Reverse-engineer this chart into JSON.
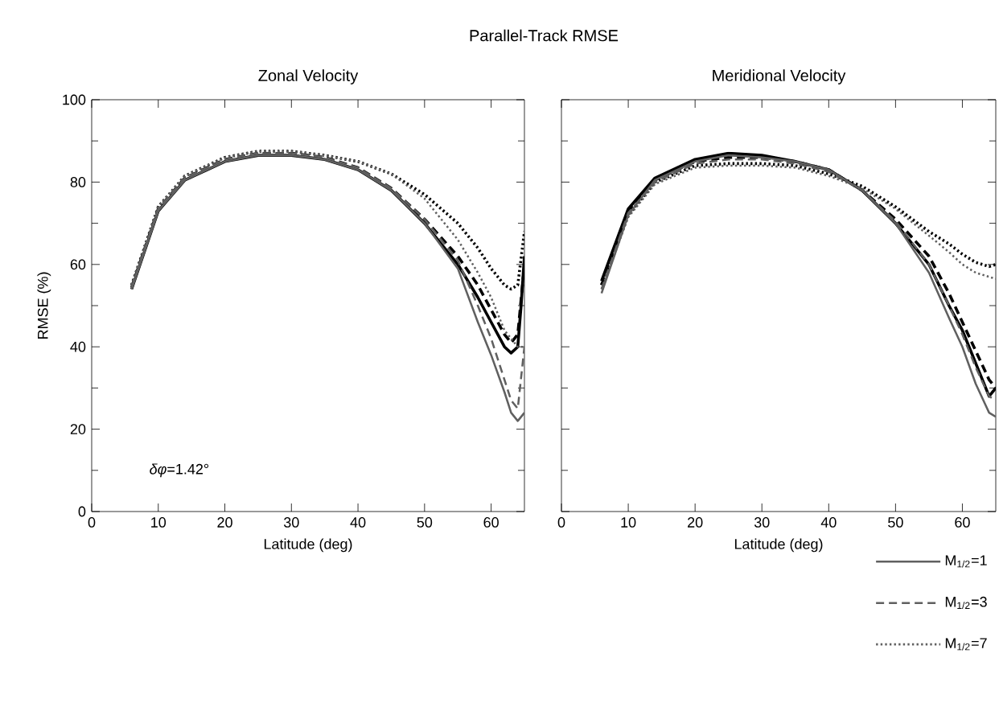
{
  "chart_data": [
    {
      "type": "line",
      "title": "Parallel-Track RMSE",
      "subtitle": "Zonal Velocity",
      "xlabel": "Latitude (deg)",
      "ylabel": "RMSE (%)",
      "xlim": [
        0,
        65
      ],
      "ylim": [
        0,
        100
      ],
      "xticks": [
        0,
        10,
        20,
        30,
        40,
        50,
        60
      ],
      "yticks": [
        0,
        20,
        40,
        60,
        80,
        100
      ],
      "grid": false,
      "legend": false,
      "annotations": [
        "*δφ*=1.42°"
      ],
      "series": [
        {
          "color": "#000000",
          "line_style": "solid",
          "x": [
            6,
            10,
            14,
            20,
            25,
            30,
            35,
            40,
            45,
            50,
            55,
            58,
            60,
            62,
            63,
            64,
            64.5,
            65
          ],
          "values": [
            54,
            73,
            80.5,
            85,
            86.5,
            86.5,
            85.5,
            83,
            78,
            70,
            60,
            52,
            46,
            40,
            38.5,
            40,
            50,
            62
          ]
        },
        {
          "color": "#000000",
          "line_style": "dashed",
          "x": [
            6,
            10,
            14,
            20,
            25,
            30,
            35,
            40,
            45,
            50,
            55,
            58,
            60,
            62,
            63,
            64,
            65
          ],
          "values": [
            54.5,
            73.5,
            81,
            85.5,
            87,
            87,
            86,
            83.5,
            78.5,
            71,
            62,
            55,
            49,
            43,
            41,
            43,
            60
          ]
        },
        {
          "color": "#000000",
          "line_style": "dotted",
          "x": [
            6,
            10,
            14,
            20,
            25,
            30,
            35,
            40,
            45,
            50,
            55,
            58,
            60,
            62,
            63,
            64,
            65
          ],
          "values": [
            55,
            74,
            81.5,
            86,
            87.5,
            87.5,
            86.5,
            85,
            82,
            77,
            70,
            64,
            59,
            55,
            54,
            55,
            68
          ]
        },
        {
          "color": "#606060",
          "line_style": "solid",
          "x": [
            6,
            10,
            14,
            20,
            25,
            30,
            35,
            40,
            45,
            50,
            55,
            58,
            60,
            62,
            63,
            64,
            65
          ],
          "values": [
            54,
            73,
            80.5,
            85,
            86.5,
            86.5,
            85.5,
            83,
            78,
            70,
            59,
            46,
            38,
            29,
            24,
            22,
            24
          ]
        },
        {
          "color": "#606060",
          "line_style": "dashed",
          "x": [
            6,
            10,
            14,
            20,
            25,
            30,
            35,
            40,
            45,
            50,
            55,
            58,
            60,
            62,
            63,
            64,
            65
          ],
          "values": [
            54.5,
            73.5,
            81,
            85.5,
            87,
            87,
            86,
            83.5,
            78.5,
            71,
            61,
            50,
            42,
            32,
            27,
            25,
            40
          ]
        },
        {
          "color": "#606060",
          "line_style": "dotted",
          "x": [
            6,
            10,
            14,
            20,
            25,
            30,
            35,
            40,
            45,
            50,
            55,
            58,
            60,
            62,
            63,
            64,
            65
          ],
          "values": [
            55,
            74,
            81.5,
            86,
            87.5,
            87.5,
            86.5,
            85,
            82,
            76,
            66,
            58,
            52,
            44,
            42,
            40,
            40
          ]
        }
      ]
    },
    {
      "type": "line",
      "title": "Meridional Velocity",
      "xlabel": "Latitude (deg)",
      "xlim": [
        0,
        65
      ],
      "ylim": [
        0,
        100
      ],
      "xticks": [
        0,
        10,
        20,
        30,
        40,
        50,
        60
      ],
      "yticks": [
        0,
        20,
        40,
        60,
        80,
        100
      ],
      "tick_labels": "x",
      "grid": false,
      "legend": "bottom right",
      "series": [
        {
          "color": "#000000",
          "line_style": "solid",
          "x": [
            6,
            10,
            14,
            20,
            25,
            30,
            35,
            40,
            45,
            50,
            55,
            58,
            60,
            62,
            64,
            65
          ],
          "values": [
            56,
            73.5,
            81,
            85.5,
            87,
            86.5,
            85,
            83,
            78,
            70,
            60,
            50,
            44,
            36,
            28,
            30
          ]
        },
        {
          "color": "#000000",
          "line_style": "dashed",
          "x": [
            6,
            10,
            14,
            20,
            25,
            30,
            35,
            40,
            45,
            50,
            55,
            58,
            60,
            62,
            64,
            65
          ],
          "values": [
            55,
            73,
            80.5,
            85,
            86,
            86,
            85,
            83,
            78,
            71,
            62,
            53,
            46,
            39,
            32,
            30
          ]
        },
        {
          "color": "#000000",
          "line_style": "dotted",
          "x": [
            6,
            10,
            14,
            20,
            25,
            30,
            35,
            40,
            45,
            50,
            55,
            58,
            60,
            62,
            64,
            65
          ],
          "values": [
            55,
            72,
            80,
            84,
            84.5,
            84.5,
            84,
            82,
            79,
            74,
            68,
            65,
            62.5,
            60.5,
            59.5,
            60
          ]
        },
        {
          "name": "M$_{1/2}$=1",
          "color": "#606060",
          "line_style": "solid",
          "x": [
            6,
            10,
            14,
            20,
            25,
            30,
            35,
            40,
            45,
            50,
            55,
            58,
            60,
            62,
            64,
            65
          ],
          "values": [
            53,
            72,
            80.5,
            85,
            86.5,
            86,
            85,
            83,
            78,
            70,
            58,
            47,
            40,
            31,
            24,
            23
          ]
        },
        {
          "name": "M$_{1/2}$=3",
          "color": "#606060",
          "line_style": "dashed",
          "x": [
            6,
            10,
            14,
            20,
            25,
            30,
            35,
            40,
            45,
            50,
            55,
            58,
            60,
            62,
            64,
            65
          ],
          "values": [
            54,
            72.5,
            80,
            84.5,
            85.5,
            85.5,
            84.5,
            82.5,
            78,
            70.5,
            60,
            50,
            43,
            35,
            28,
            27
          ]
        },
        {
          "name": "M$_{1/2}$=7",
          "color": "#606060",
          "line_style": "dotted",
          "x": [
            6,
            10,
            14,
            20,
            25,
            30,
            35,
            40,
            45,
            50,
            55,
            58,
            60,
            62,
            64,
            65
          ],
          "values": [
            54,
            71.5,
            79.5,
            83.5,
            84,
            84,
            83.5,
            81.5,
            78.5,
            73.5,
            67,
            63,
            60,
            58,
            57,
            56.5
          ]
        }
      ]
    }
  ]
}
